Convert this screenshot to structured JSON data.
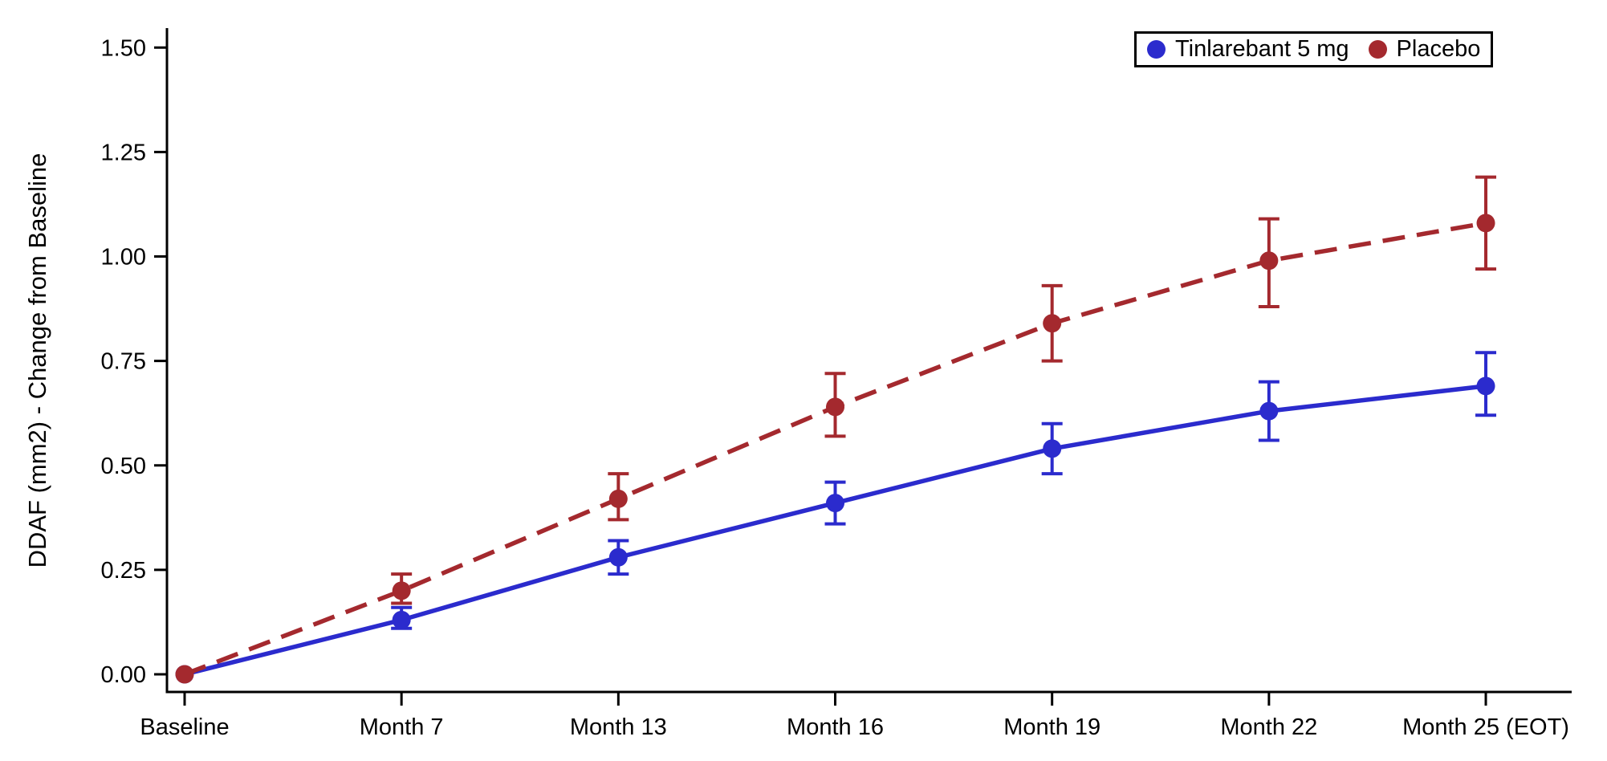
{
  "figure": {
    "background": "#ffffff",
    "axis_color": "#000000",
    "text_color": "#000000"
  },
  "chart_data": {
    "type": "line",
    "title": "",
    "xlabel": "",
    "ylabel": "DDAF (mm2) - Change from Baseline",
    "ylim": [
      0,
      1.5
    ],
    "grid": false,
    "legend_position": "top-right",
    "y_tick_values": [
      0,
      0.25,
      0.5,
      0.75,
      1.0,
      1.25,
      1.5
    ],
    "y_tick_labels": [
      "0.00",
      "0.25",
      "0.50",
      "0.75",
      "1.00",
      "1.25",
      "1.50"
    ],
    "categories": [
      "Baseline",
      "Month 7",
      "Month 13",
      "Month 16",
      "Month 19",
      "Month 22",
      "Month 25 (EOT)"
    ],
    "series": [
      {
        "name": "Tinlarebant 5 mg",
        "color": "#2b2bcd",
        "line_style": "solid",
        "marker": "circle",
        "values": [
          0,
          0.13,
          0.28,
          0.41,
          0.54,
          0.63,
          0.69
        ],
        "error_low": [
          0,
          0.11,
          0.24,
          0.36,
          0.48,
          0.56,
          0.62
        ],
        "error_high": [
          0,
          0.16,
          0.32,
          0.46,
          0.6,
          0.7,
          0.77
        ]
      },
      {
        "name": "Placebo",
        "color": "#a4292e",
        "line_style": "dashed",
        "marker": "circle",
        "values": [
          0,
          0.2,
          0.42,
          0.64,
          0.84,
          0.99,
          1.08
        ],
        "error_low": [
          0,
          0.17,
          0.37,
          0.57,
          0.75,
          0.88,
          0.97
        ],
        "error_high": [
          0,
          0.24,
          0.48,
          0.72,
          0.93,
          1.09,
          1.19
        ]
      }
    ]
  }
}
